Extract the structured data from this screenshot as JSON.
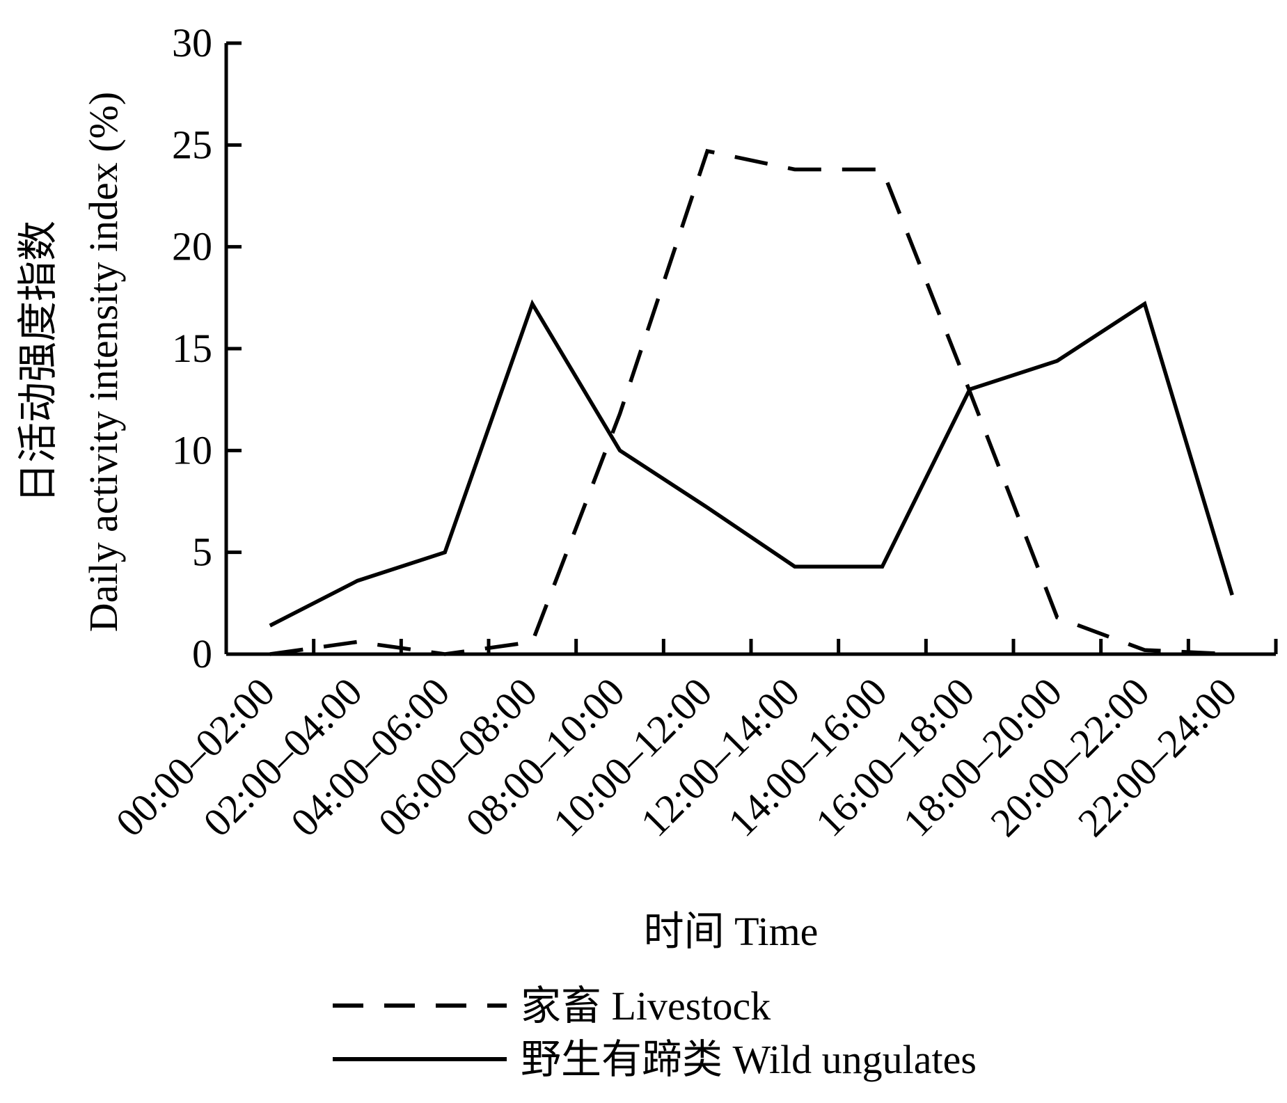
{
  "chart_data": {
    "type": "line",
    "categories": [
      "00:00–02:00",
      "02:00–04:00",
      "04:00–06:00",
      "06:00–08:00",
      "08:00–10:00",
      "10:00–12:00",
      "12:00–14:00",
      "14:00–16:00",
      "16:00–18:00",
      "18:00–20:00",
      "20:00–22:00",
      "22:00–24:00"
    ],
    "series": [
      {
        "name": "家畜 Livestock",
        "style": "dashed",
        "color": "#000000",
        "values": [
          0,
          0.6,
          0,
          0.6,
          11.8,
          24.7,
          23.8,
          23.8,
          12.9,
          1.8,
          0.2,
          0
        ]
      },
      {
        "name": "野生有蹄类 Wild ungulates",
        "style": "solid",
        "color": "#000000",
        "values": [
          1.4,
          3.6,
          5.0,
          17.2,
          10.0,
          7.2,
          4.3,
          4.3,
          13.0,
          14.4,
          17.2,
          2.9
        ]
      }
    ],
    "xlabel": "时间  Time",
    "ylabel_line1": "日活动强度指数",
    "ylabel_line2": "Daily activity intensity index (%)",
    "ylim": [
      0,
      30
    ],
    "yticks": [
      0,
      5,
      10,
      15,
      20,
      25,
      30
    ],
    "grid": false,
    "legend_position": "bottom"
  }
}
